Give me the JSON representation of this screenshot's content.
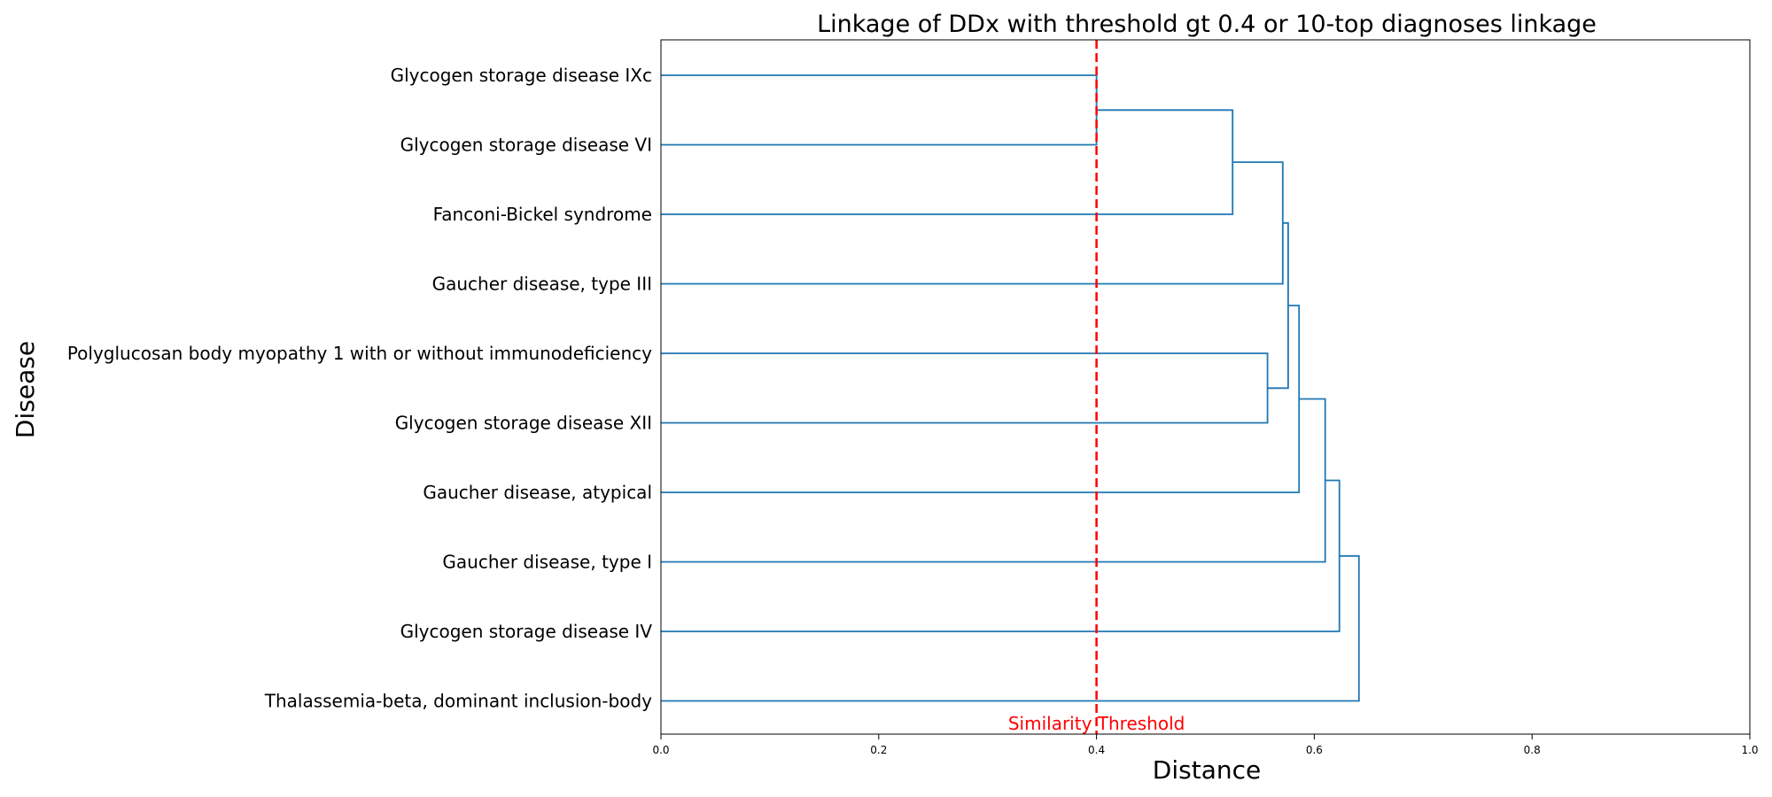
{
  "chart_data": {
    "type": "dendrogram",
    "orientation": "horizontal",
    "title": "Linkage of DDx with threshold gt 0.4 or 10-top diagnoses linkage",
    "xlabel": "Distance",
    "ylabel": "Disease",
    "xlim": [
      0.0,
      1.0
    ],
    "xticks": [
      "0.0",
      "0.2",
      "0.4",
      "0.6",
      "0.8",
      "1.0"
    ],
    "grid": false,
    "line_color": "#1f77b4",
    "leaves": [
      "Glycogen storage disease IXc",
      "Glycogen storage disease VI",
      "Fanconi-Bickel syndrome",
      "Gaucher disease, type III",
      "Polyglucosan body myopathy 1 with or without immunodeficiency",
      "Glycogen storage disease XII",
      "Gaucher disease, atypical",
      "Gaucher disease, type I",
      "Glycogen storage disease IV",
      "Thalassemia-beta, dominant inclusion-body"
    ],
    "merges": [
      {
        "a": "L0",
        "b": "L1",
        "distance": 0.4
      },
      {
        "a": "M0",
        "b": "L2",
        "distance": 0.525
      },
      {
        "a": "M1",
        "b": "L3",
        "distance": 0.571
      },
      {
        "a": "L4",
        "b": "L5",
        "distance": 0.557
      },
      {
        "a": "M2",
        "b": "M3",
        "distance": 0.576
      },
      {
        "a": "M4",
        "b": "L6",
        "distance": 0.586
      },
      {
        "a": "M5",
        "b": "L7",
        "distance": 0.61
      },
      {
        "a": "M6",
        "b": "L8",
        "distance": 0.623
      },
      {
        "a": "M7",
        "b": "L9",
        "distance": 0.641
      }
    ],
    "threshold": {
      "value": 0.4,
      "label": "Similarity Threshold",
      "color": "#ff0000",
      "style": "dashed"
    }
  }
}
